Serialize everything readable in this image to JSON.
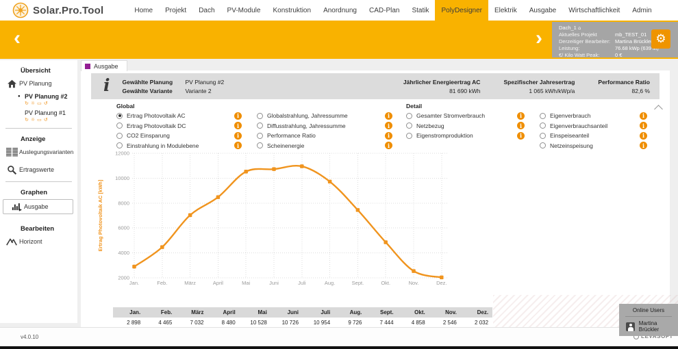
{
  "nav": {
    "logo_text": "Solar.Pro.Tool",
    "items": [
      {
        "label": "Home"
      },
      {
        "label": "Projekt"
      },
      {
        "label": "Dach"
      },
      {
        "label": "PV-Module"
      },
      {
        "label": "Konstruktion"
      },
      {
        "label": "Anordnung"
      },
      {
        "label": "CAD-Plan"
      },
      {
        "label": "Statik"
      },
      {
        "label": "PolyDesigner",
        "active": true
      },
      {
        "label": "Elektrik"
      },
      {
        "label": "Ausgabe"
      },
      {
        "label": "Wirtschaftlichkeit"
      },
      {
        "label": "Admin"
      }
    ]
  },
  "banner": {
    "roof_name": "Dach_1",
    "rows": [
      {
        "label": "Aktuelles Projekt",
        "value": "mb_TEST_01"
      },
      {
        "label": "Derzeitiger Bearbeiter:",
        "value": "Martina Brückler"
      },
      {
        "label": "Leistung:",
        "value": "76.68 kWp (639 M)"
      },
      {
        "label": "€/ Kilo Watt Peak:",
        "value": "0 €"
      }
    ]
  },
  "sidebar": {
    "overview_header": "Übersicht",
    "pv_planung_label": "PV Planung",
    "plans": [
      {
        "label": "PV Planung #2",
        "selected": true
      },
      {
        "label": "PV Planung #1",
        "selected": false
      }
    ],
    "plan_icons": [
      {
        "name": "refresh-icon",
        "glyph": "↻"
      },
      {
        "name": "bulb-icon",
        "glyph": "☼"
      },
      {
        "name": "display-icon",
        "glyph": "▭"
      },
      {
        "name": "undo-icon",
        "glyph": "↺"
      }
    ],
    "anzeige_header": "Anzeige",
    "auslegungsvarianten_label": "Auslegungsvarianten",
    "ertragswerte_label": "Ertragswerte",
    "graphen_header": "Graphen",
    "ausgabe_label": "Ausgabe",
    "bearbeiten_header": "Bearbeiten",
    "horizont_label": "Horizont"
  },
  "output_tab": {
    "label": "Ausgabe"
  },
  "summary": {
    "planung_label": "Gewählte Planung",
    "planung_value": "PV Planung #2",
    "variante_label": "Gewählte Variante",
    "variante_value": "Variante 2",
    "metrics": [
      {
        "label": "Jährlicher Energieertrag AC",
        "value": "81 690 kWh"
      },
      {
        "label": "Spezifischer Jahresertrag",
        "value": "1 065 kWh/kWp/a"
      },
      {
        "label": "Performance Ratio",
        "value": "82,6 %"
      }
    ]
  },
  "options": {
    "global": {
      "title": "Global",
      "col1": [
        {
          "label": "Ertrag Photovoltaik AC",
          "selected": true
        },
        {
          "label": "Ertrag Photovoltaik DC",
          "selected": false
        },
        {
          "label": "CO2 Einsparung",
          "selected": false
        },
        {
          "label": "Einstrahlung in Modulebene",
          "selected": false
        }
      ],
      "col2": [
        {
          "label": "Globalstrahlung, Jahressumme",
          "selected": false
        },
        {
          "label": "Diffusstrahlung, Jahressumme",
          "selected": false
        },
        {
          "label": "Performance Ratio",
          "selected": false
        },
        {
          "label": "Scheinenergie",
          "selected": false
        }
      ]
    },
    "detail": {
      "title": "Detail",
      "col1": [
        {
          "label": "Gesamter Stromverbrauch",
          "selected": false
        },
        {
          "label": "Netzbezug",
          "selected": false
        },
        {
          "label": "Eigenstromproduktion",
          "selected": false
        }
      ],
      "col2": [
        {
          "label": "Eigenverbrauch",
          "selected": false
        },
        {
          "label": "Eigenverbrauchsanteil",
          "selected": false
        },
        {
          "label": "Einspeiseanteil",
          "selected": false
        },
        {
          "label": "Netzeinspeisung",
          "selected": false
        }
      ]
    }
  },
  "chart_data": {
    "type": "line",
    "categories": [
      "Jan.",
      "Feb.",
      "März",
      "April",
      "Mai",
      "Juni",
      "Juli",
      "Aug.",
      "Sept.",
      "Okt.",
      "Nov.",
      "Dez."
    ],
    "values": [
      2898,
      4465,
      7032,
      8480,
      10528,
      10726,
      10954,
      9726,
      7444,
      4858,
      2546,
      2032
    ],
    "title": "",
    "xlabel": "",
    "ylabel": "Ertrag Photovoltaik AC [kWh]",
    "ylim": [
      2000,
      12000
    ],
    "yticks": [
      2000,
      4000,
      6000,
      8000,
      10000,
      12000
    ],
    "grid": true,
    "legend": "none",
    "line_color": "#f0941e"
  },
  "table": {
    "headers": [
      "Jan.",
      "Feb.",
      "März",
      "April",
      "Mai",
      "Juni",
      "Juli",
      "Aug.",
      "Sept.",
      "Okt.",
      "Nov.",
      "Dez."
    ],
    "values": [
      "2 898",
      "4 465",
      "7 032",
      "8 480",
      "10 528",
      "10 726",
      "10 954",
      "9 726",
      "7 444",
      "4 858",
      "2 546",
      "2 032"
    ]
  },
  "online_users": {
    "title": "Online Users",
    "user": "Martina Brückler"
  },
  "footer": {
    "version": "v4.0.10",
    "brand": "LEVASOFT"
  },
  "colors": {
    "accent": "#f9b200",
    "gear": "#ef9400",
    "chart_line": "#f0941e",
    "info_icon": "#ef8e00",
    "tab_square": "#941f93",
    "banner_box": "#a5a5a5"
  }
}
